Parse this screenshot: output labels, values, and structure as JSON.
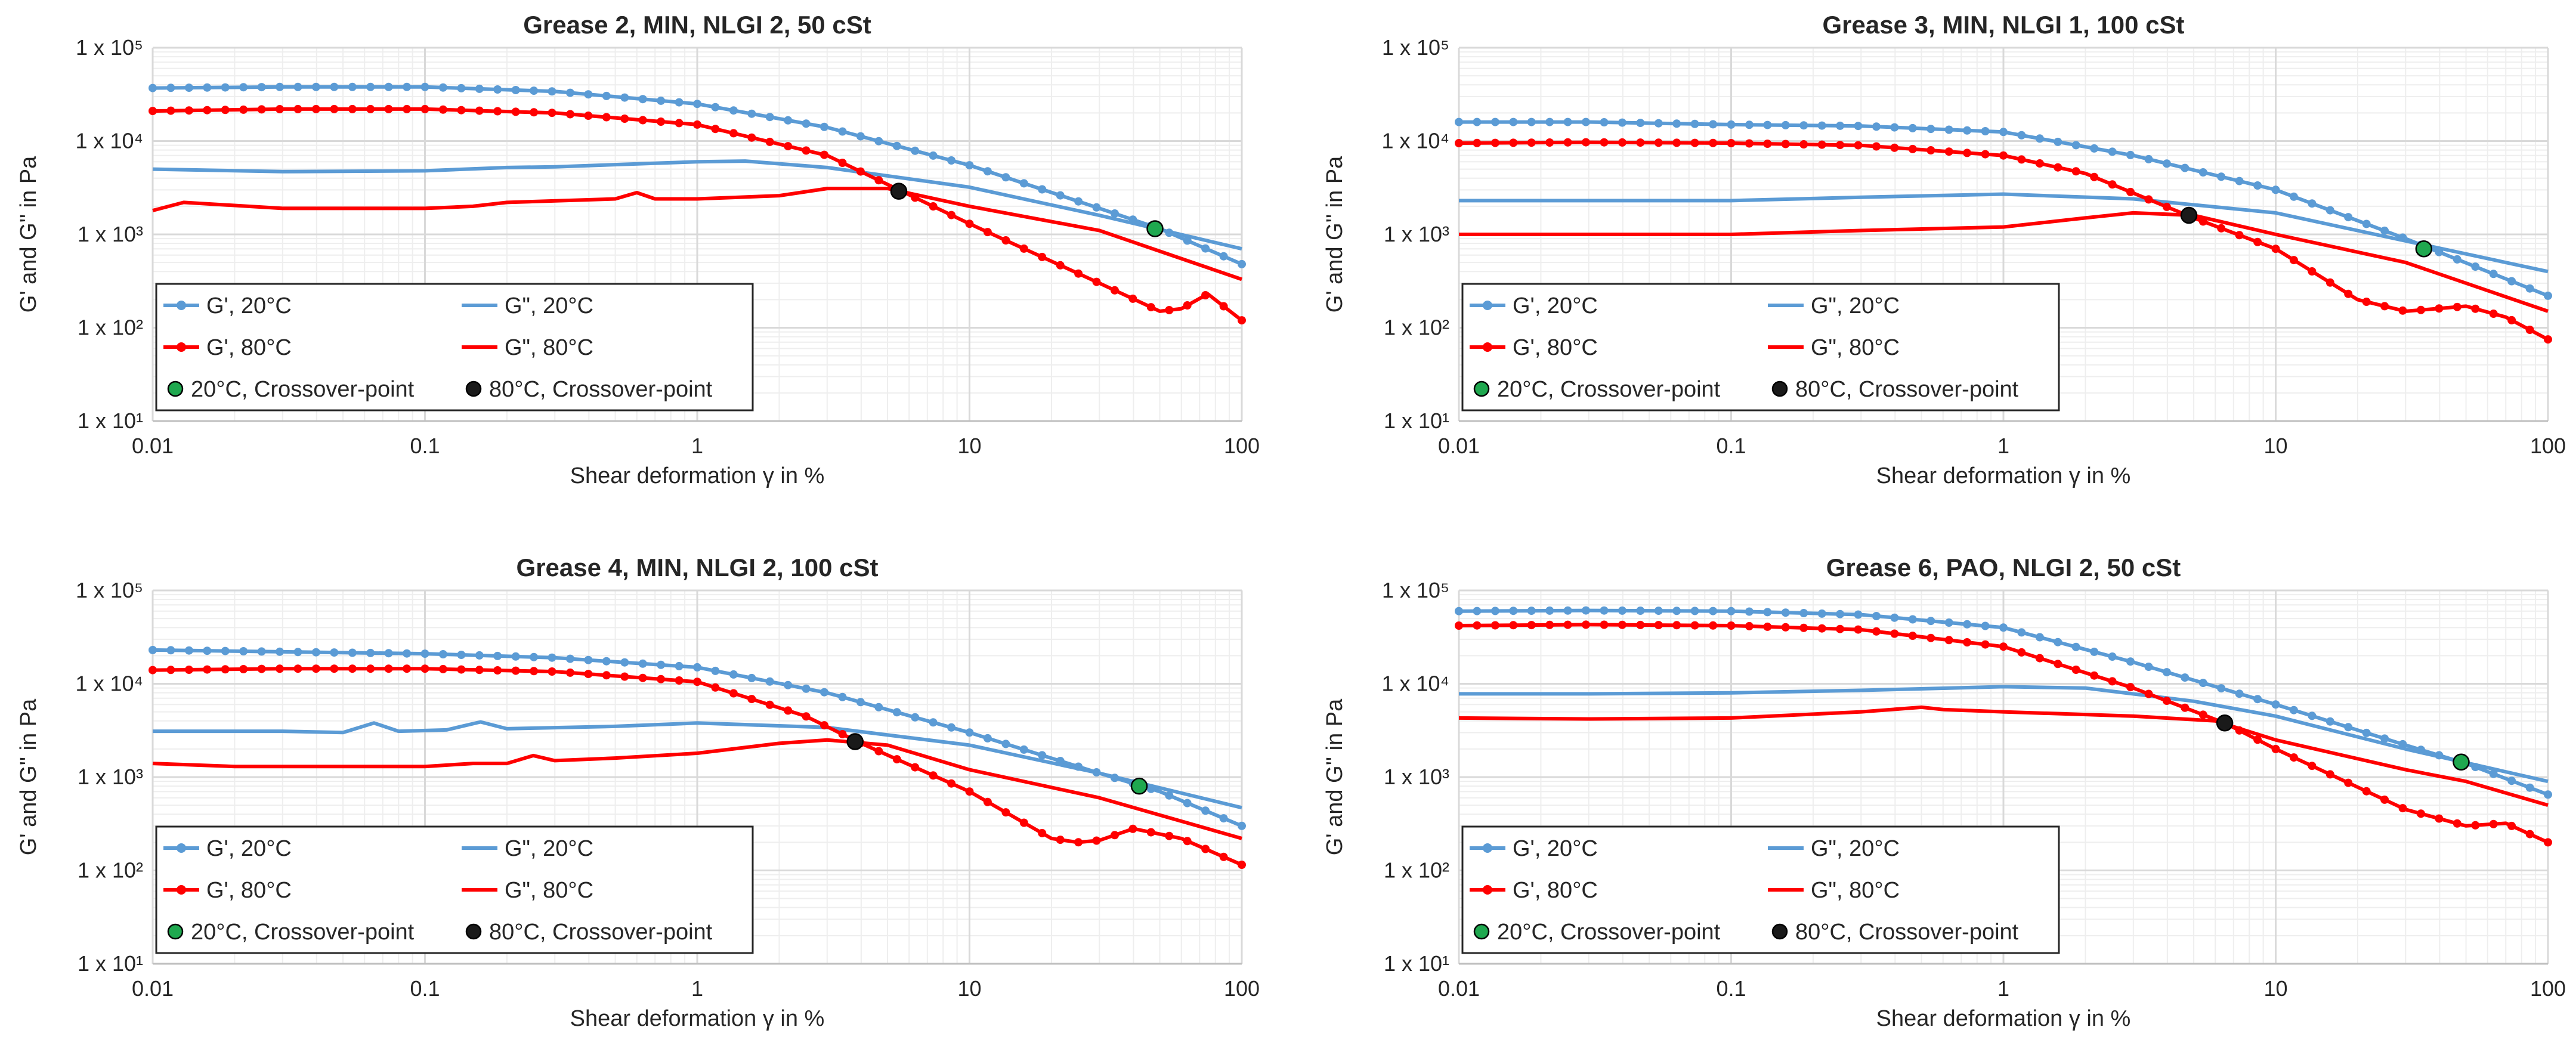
{
  "colors": {
    "g20": "#5b9bd5",
    "g80": "#ff0000",
    "cross20": "#1fa84f",
    "cross80": "#1a1a1a",
    "grid": "#d9d9d9",
    "minorGrid": "#eeeeee",
    "axis": "#bfbfbf"
  },
  "legend": {
    "g1_20": "G', 20°C",
    "g2_20": "G\", 20°C",
    "g1_80": "G', 80°C",
    "g2_80": "G\", 80°C",
    "cross_20": "20°C, Crossover-point",
    "cross_80": "80°C, Crossover-point"
  },
  "chart_data": [
    {
      "type": "line",
      "title": "Grease 2, MIN, NLGI 2, 50 cSt",
      "xlabel": "Shear deformation γ in %",
      "ylabel": "G' and G'' in Pa",
      "xscale": "log",
      "yscale": "log",
      "xlim": [
        0.01,
        100
      ],
      "ylim": [
        10,
        100000
      ],
      "x_ticks": [
        "0.01",
        "0.1",
        "1",
        "10",
        "100"
      ],
      "y_ticks": [
        "1 x 10¹",
        "1 x 10²",
        "1 x 10³",
        "1 x 10⁴",
        "1 x 10⁵"
      ],
      "legend_position": "bottom-left",
      "series": [
        {
          "name": "G', 20°C",
          "marker": true,
          "points": [
            [
              0.01,
              37000
            ],
            [
              0.03,
              38000
            ],
            [
              0.1,
              38000
            ],
            [
              0.3,
              34000
            ],
            [
              1,
              25000
            ],
            [
              3,
              14000
            ],
            [
              10,
              5500
            ],
            [
              30,
              1900
            ],
            [
              50,
              1150
            ],
            [
              100,
              480
            ]
          ]
        },
        {
          "name": "G\", 20°C",
          "marker": false,
          "points": [
            [
              0.01,
              5000
            ],
            [
              0.03,
              4700
            ],
            [
              0.1,
              4800
            ],
            [
              0.2,
              5200
            ],
            [
              0.3,
              5300
            ],
            [
              1,
              6000
            ],
            [
              1.5,
              6100
            ],
            [
              3,
              5200
            ],
            [
              10,
              3200
            ],
            [
              30,
              1600
            ],
            [
              100,
              700
            ]
          ]
        },
        {
          "name": "G', 80°C",
          "marker": true,
          "points": [
            [
              0.01,
              21000
            ],
            [
              0.03,
              22000
            ],
            [
              0.1,
              22000
            ],
            [
              0.3,
              20000
            ],
            [
              1,
              15000
            ],
            [
              3,
              7000
            ],
            [
              5.5,
              3000
            ],
            [
              10,
              1300
            ],
            [
              30,
              300
            ],
            [
              50,
              150
            ],
            [
              60,
              160
            ],
            [
              75,
              230
            ],
            [
              100,
              120
            ]
          ]
        },
        {
          "name": "G\", 80°C",
          "marker": false,
          "points": [
            [
              0.01,
              1800
            ],
            [
              0.013,
              2200
            ],
            [
              0.03,
              1900
            ],
            [
              0.1,
              1900
            ],
            [
              0.15,
              2000
            ],
            [
              0.2,
              2200
            ],
            [
              0.5,
              2400
            ],
            [
              0.6,
              2800
            ],
            [
              0.7,
              2400
            ],
            [
              1,
              2400
            ],
            [
              2,
              2600
            ],
            [
              3,
              3100
            ],
            [
              5,
              3100
            ],
            [
              10,
              2000
            ],
            [
              30,
              1100
            ],
            [
              100,
              330
            ]
          ]
        }
      ],
      "crossover": [
        {
          "name": "20°C, Crossover-point",
          "x": 48,
          "y": 1150
        },
        {
          "name": "80°C, Crossover-point",
          "x": 5.5,
          "y": 2900
        }
      ]
    },
    {
      "type": "line",
      "title": "Grease 3, MIN, NLGI 1, 100 cSt",
      "xlabel": "Shear deformation γ in %",
      "ylabel": "G' and G'' in Pa",
      "xscale": "log",
      "yscale": "log",
      "xlim": [
        0.01,
        100
      ],
      "ylim": [
        10,
        100000
      ],
      "x_ticks": [
        "0.01",
        "0.1",
        "1",
        "10",
        "100"
      ],
      "y_ticks": [
        "1 x 10¹",
        "1 x 10²",
        "1 x 10³",
        "1 x 10⁴",
        "1 x 10⁵"
      ],
      "legend_position": "bottom-left",
      "series": [
        {
          "name": "G', 20°C",
          "marker": true,
          "points": [
            [
              0.01,
              16000
            ],
            [
              0.03,
              16000
            ],
            [
              0.1,
              15000
            ],
            [
              0.3,
              14500
            ],
            [
              1,
              12500
            ],
            [
              3,
              7000
            ],
            [
              10,
              3000
            ],
            [
              30,
              900
            ],
            [
              100,
              220
            ]
          ]
        },
        {
          "name": "G\", 20°C",
          "marker": false,
          "points": [
            [
              0.01,
              2300
            ],
            [
              0.03,
              2300
            ],
            [
              0.1,
              2300
            ],
            [
              0.3,
              2500
            ],
            [
              1,
              2700
            ],
            [
              3,
              2400
            ],
            [
              10,
              1700
            ],
            [
              30,
              850
            ],
            [
              100,
              400
            ]
          ]
        },
        {
          "name": "G', 80°C",
          "marker": true,
          "points": [
            [
              0.01,
              9500
            ],
            [
              0.03,
              9700
            ],
            [
              0.1,
              9500
            ],
            [
              0.3,
              9000
            ],
            [
              1,
              7000
            ],
            [
              2,
              4500
            ],
            [
              5,
              1500
            ],
            [
              10,
              700
            ],
            [
              20,
              200
            ],
            [
              30,
              150
            ],
            [
              50,
              170
            ],
            [
              70,
              130
            ],
            [
              100,
              75
            ]
          ]
        },
        {
          "name": "G\", 80°C",
          "marker": false,
          "points": [
            [
              0.01,
              1000
            ],
            [
              0.03,
              1000
            ],
            [
              0.1,
              1000
            ],
            [
              0.3,
              1100
            ],
            [
              1,
              1200
            ],
            [
              2,
              1500
            ],
            [
              3,
              1700
            ],
            [
              5,
              1600
            ],
            [
              10,
              1000
            ],
            [
              30,
              500
            ],
            [
              100,
              150
            ]
          ]
        }
      ],
      "crossover": [
        {
          "name": "20°C, Crossover-point",
          "x": 35,
          "y": 700
        },
        {
          "name": "80°C, Crossover-point",
          "x": 4.8,
          "y": 1600
        }
      ]
    },
    {
      "type": "line",
      "title": "Grease 4, MIN, NLGI 2, 100 cSt",
      "xlabel": "Shear deformation γ in %",
      "ylabel": "G' and G'' in Pa",
      "xscale": "log",
      "yscale": "log",
      "xlim": [
        0.01,
        100
      ],
      "ylim": [
        10,
        100000
      ],
      "x_ticks": [
        "0.01",
        "0.1",
        "1",
        "10",
        "100"
      ],
      "y_ticks": [
        "1 x 10¹",
        "1 x 10²",
        "1 x 10³",
        "1 x 10⁴",
        "1 x 10⁵"
      ],
      "legend_position": "bottom-left",
      "series": [
        {
          "name": "G', 20°C",
          "marker": true,
          "points": [
            [
              0.01,
              23000
            ],
            [
              0.03,
              22000
            ],
            [
              0.1,
              21000
            ],
            [
              0.3,
              19000
            ],
            [
              1,
              15000
            ],
            [
              3,
              8000
            ],
            [
              10,
              3000
            ],
            [
              30,
              1100
            ],
            [
              50,
              700
            ],
            [
              100,
              300
            ]
          ]
        },
        {
          "name": "G\", 20°C",
          "marker": false,
          "points": [
            [
              0.01,
              3100
            ],
            [
              0.03,
              3100
            ],
            [
              0.05,
              3000
            ],
            [
              0.065,
              3800
            ],
            [
              0.08,
              3100
            ],
            [
              0.12,
              3200
            ],
            [
              0.16,
              3900
            ],
            [
              0.2,
              3300
            ],
            [
              0.5,
              3500
            ],
            [
              1,
              3800
            ],
            [
              3,
              3400
            ],
            [
              10,
              2200
            ],
            [
              30,
              1100
            ],
            [
              100,
              470
            ]
          ]
        },
        {
          "name": "G', 80°C",
          "marker": true,
          "points": [
            [
              0.01,
              14000
            ],
            [
              0.03,
              14500
            ],
            [
              0.1,
              14500
            ],
            [
              0.3,
              13500
            ],
            [
              1,
              10500
            ],
            [
              2.5,
              4500
            ],
            [
              4,
              2300
            ],
            [
              10,
              700
            ],
            [
              20,
              220
            ],
            [
              25,
              200
            ],
            [
              30,
              210
            ],
            [
              40,
              280
            ],
            [
              60,
              220
            ],
            [
              100,
              115
            ]
          ]
        },
        {
          "name": "G\", 80°C",
          "marker": false,
          "points": [
            [
              0.01,
              1400
            ],
            [
              0.02,
              1300
            ],
            [
              0.05,
              1300
            ],
            [
              0.1,
              1300
            ],
            [
              0.15,
              1400
            ],
            [
              0.2,
              1400
            ],
            [
              0.25,
              1700
            ],
            [
              0.3,
              1500
            ],
            [
              0.5,
              1600
            ],
            [
              1,
              1800
            ],
            [
              2,
              2300
            ],
            [
              3,
              2500
            ],
            [
              5,
              2200
            ],
            [
              10,
              1200
            ],
            [
              30,
              600
            ],
            [
              100,
              220
            ]
          ]
        }
      ],
      "crossover": [
        {
          "name": "20°C, Crossover-point",
          "x": 42,
          "y": 800
        },
        {
          "name": "80°C, Crossover-point",
          "x": 3.8,
          "y": 2400
        }
      ]
    },
    {
      "type": "line",
      "title": "Grease 6, PAO, NLGI 2, 50 cSt",
      "xlabel": "Shear deformation γ in %",
      "ylabel": "G' and G'' in Pa",
      "xscale": "log",
      "yscale": "log",
      "xlim": [
        0.01,
        100
      ],
      "ylim": [
        10,
        100000
      ],
      "x_ticks": [
        "0.01",
        "0.1",
        "1",
        "10",
        "100"
      ],
      "y_ticks": [
        "1 x 10¹",
        "1 x 10²",
        "1 x 10³",
        "1 x 10⁴",
        "1 x 10⁵"
      ],
      "legend_position": "bottom-left",
      "series": [
        {
          "name": "G', 20°C",
          "marker": true,
          "points": [
            [
              0.01,
              60000
            ],
            [
              0.03,
              61000
            ],
            [
              0.1,
              60000
            ],
            [
              0.3,
              55000
            ],
            [
              1,
              40000
            ],
            [
              3,
              17000
            ],
            [
              10,
              6000
            ],
            [
              30,
              2200
            ],
            [
              50,
              1400
            ],
            [
              100,
              650
            ]
          ]
        },
        {
          "name": "G\", 20°C",
          "marker": false,
          "points": [
            [
              0.01,
              7800
            ],
            [
              0.03,
              7800
            ],
            [
              0.1,
              8000
            ],
            [
              0.3,
              8500
            ],
            [
              1,
              9300
            ],
            [
              2,
              9000
            ],
            [
              5,
              6500
            ],
            [
              10,
              4500
            ],
            [
              30,
              2000
            ],
            [
              100,
              900
            ]
          ]
        },
        {
          "name": "G', 80°C",
          "marker": true,
          "points": [
            [
              0.01,
              42000
            ],
            [
              0.03,
              43000
            ],
            [
              0.1,
              42000
            ],
            [
              0.3,
              38000
            ],
            [
              1,
              25000
            ],
            [
              3,
              9000
            ],
            [
              6.5,
              3800
            ],
            [
              10,
              2000
            ],
            [
              30,
              450
            ],
            [
              50,
              300
            ],
            [
              70,
              320
            ],
            [
              100,
              200
            ]
          ]
        },
        {
          "name": "G\", 80°C",
          "marker": false,
          "points": [
            [
              0.01,
              4300
            ],
            [
              0.03,
              4200
            ],
            [
              0.1,
              4300
            ],
            [
              0.3,
              5000
            ],
            [
              0.5,
              5600
            ],
            [
              0.6,
              5300
            ],
            [
              1,
              5000
            ],
            [
              3,
              4500
            ],
            [
              6,
              4000
            ],
            [
              10,
              2500
            ],
            [
              30,
              1200
            ],
            [
              50,
              900
            ],
            [
              100,
              500
            ]
          ]
        }
      ],
      "crossover": [
        {
          "name": "20°C, Crossover-point",
          "x": 48,
          "y": 1450
        },
        {
          "name": "80°C, Crossover-point",
          "x": 6.5,
          "y": 3800
        }
      ]
    }
  ]
}
